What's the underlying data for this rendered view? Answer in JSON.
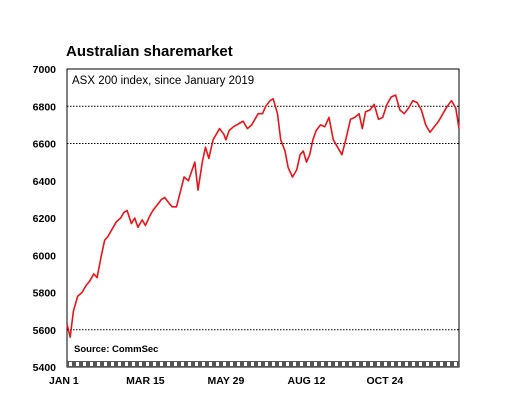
{
  "chart_data": {
    "type": "line",
    "title": "Australian sharemarket",
    "subtitle": "ASX 200 index, since January 2019",
    "source": "Source: CommSec",
    "ylim": [
      5400,
      7000
    ],
    "yticks": [
      7000,
      6800,
      6600,
      6400,
      6200,
      6000,
      5800,
      5600,
      5400
    ],
    "ref_lines": [
      6800,
      6600,
      5600
    ],
    "xlim": [
      0,
      365
    ],
    "xticks": [
      {
        "label": "JAN  1",
        "day": 0
      },
      {
        "label": "MAR 15",
        "day": 73
      },
      {
        "label": "MAY 29",
        "day": 148
      },
      {
        "label": "AUG 12",
        "day": 223
      },
      {
        "label": "OCT 24",
        "day": 296
      }
    ],
    "series": [
      {
        "color": "#e8141b",
        "x": [
          0,
          3,
          6,
          10,
          14,
          18,
          21,
          25,
          28,
          32,
          35,
          38,
          42,
          46,
          50,
          53,
          56,
          60,
          63,
          66,
          70,
          73,
          77,
          80,
          84,
          88,
          91,
          95,
          98,
          102,
          106,
          109,
          113,
          116,
          119,
          122,
          126,
          129,
          132,
          136,
          139,
          142,
          146,
          148,
          151,
          155,
          158,
          161,
          164,
          168,
          172,
          175,
          178,
          182,
          185,
          189,
          192,
          196,
          199,
          203,
          206,
          210,
          214,
          217,
          220,
          223,
          226,
          229,
          232,
          236,
          240,
          244,
          248,
          252,
          256,
          260,
          264,
          268,
          272,
          275,
          278,
          282,
          286,
          290,
          294,
          298,
          302,
          306,
          310,
          314,
          318,
          322,
          326,
          330,
          334,
          338,
          342,
          346,
          350,
          354,
          358,
          362,
          365
        ],
        "y": [
          5630,
          5560,
          5700,
          5780,
          5800,
          5840,
          5860,
          5900,
          5880,
          6000,
          6080,
          6100,
          6140,
          6180,
          6200,
          6230,
          6240,
          6170,
          6200,
          6150,
          6190,
          6160,
          6210,
          6240,
          6270,
          6300,
          6310,
          6280,
          6260,
          6260,
          6350,
          6420,
          6400,
          6450,
          6500,
          6350,
          6500,
          6580,
          6520,
          6620,
          6650,
          6680,
          6650,
          6620,
          6670,
          6690,
          6700,
          6710,
          6720,
          6680,
          6700,
          6730,
          6760,
          6760,
          6800,
          6830,
          6840,
          6760,
          6620,
          6560,
          6470,
          6420,
          6460,
          6540,
          6560,
          6500,
          6540,
          6620,
          6670,
          6700,
          6690,
          6740,
          6620,
          6580,
          6540,
          6630,
          6730,
          6740,
          6760,
          6680,
          6770,
          6780,
          6810,
          6730,
          6740,
          6810,
          6850,
          6860,
          6780,
          6760,
          6790,
          6830,
          6820,
          6780,
          6700,
          6660,
          6690,
          6720,
          6760,
          6800,
          6830,
          6790,
          6680
        ]
      }
    ],
    "grid": false,
    "legend": "none"
  }
}
